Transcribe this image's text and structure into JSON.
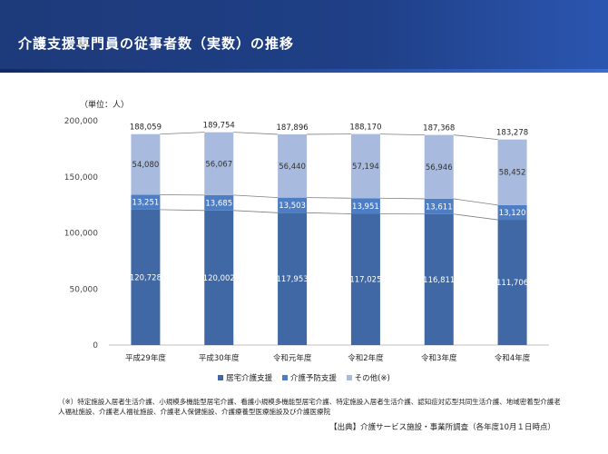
{
  "header": {
    "title": "介護支援専門員の従事者数（実数）の推移"
  },
  "chart_data": {
    "type": "bar",
    "stacked": true,
    "unit_label": "（単位：人）",
    "categories": [
      "平成29年度",
      "平成30年度",
      "令和元年度",
      "令和2年度",
      "令和3年度",
      "令和4年度"
    ],
    "series": [
      {
        "name": "居宅介護支援",
        "color": "#3f68a4",
        "values": [
          120728,
          120002,
          117953,
          117025,
          116811,
          111706
        ]
      },
      {
        "name": "介護予防支援",
        "color": "#4d7dc4",
        "values": [
          13251,
          13685,
          13503,
          13951,
          13611,
          13120
        ]
      },
      {
        "name": "その他(※)",
        "color": "#a8bade",
        "values": [
          54080,
          56067,
          56440,
          57194,
          56946,
          58452
        ]
      }
    ],
    "totals": [
      188059,
      189754,
      187896,
      188170,
      187368,
      183278
    ],
    "total_labels": [
      "188,059",
      "189,754",
      "187,896",
      "188,170",
      "187,368",
      "183,278"
    ],
    "segment_labels": [
      [
        "120,728",
        "120,002",
        "117,953",
        "117,025",
        "116,811",
        "111,706"
      ],
      [
        "13,251",
        "13,685",
        "13,503",
        "13,951",
        "13,611",
        "13,120"
      ],
      [
        "54,080",
        "56,067",
        "56,440",
        "57,194",
        "56,946",
        "58,452"
      ]
    ],
    "yticks": [
      0,
      50000,
      100000,
      150000,
      200000
    ],
    "ytick_labels": [
      "0",
      "50,000",
      "100,000",
      "150,000",
      "200,000"
    ],
    "ylim": [
      0,
      200000
    ],
    "legend_position": "bottom",
    "grid": false
  },
  "footnote": "（※）特定施設入居者生活介護、小規模多機能型居宅介護、看護小規模多機能型居宅介護、特定施設入居者生活介護、認知症対応型共同生活介護、地域密着型介護老人福祉施設、介護老人福祉施設、介護老人保健施設、介護療養型医療施設及び介護医療院",
  "source": "【出典】介護サービス施設・事業所調査（各年度10月１日時点）"
}
